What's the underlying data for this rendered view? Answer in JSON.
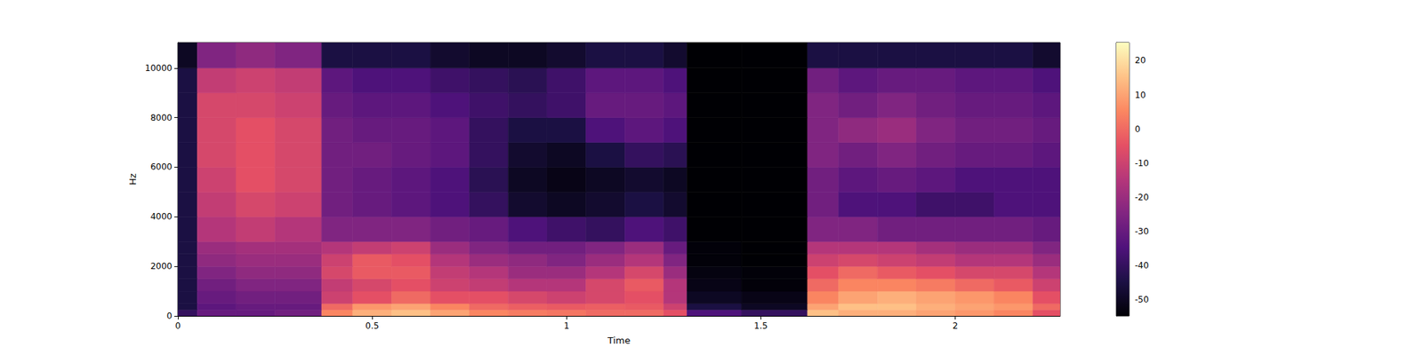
{
  "chart_data": {
    "type": "heatmap",
    "x_label": "Time",
    "y_label": "Hz",
    "xlim": [
      0,
      2.27
    ],
    "xticks": [
      0,
      0.5,
      1,
      1.5,
      2
    ],
    "ylim": [
      0,
      11025
    ],
    "yticks": [
      0,
      2000,
      4000,
      6000,
      8000,
      10000
    ],
    "x_edges": [
      0,
      0.05,
      0.15,
      0.25,
      0.37,
      0.45,
      0.55,
      0.65,
      0.75,
      0.85,
      0.95,
      1.05,
      1.15,
      1.25,
      1.31,
      1.45,
      1.62,
      1.7,
      1.8,
      1.9,
      2.0,
      2.1,
      2.2,
      2.27
    ],
    "y_edges": [
      0,
      250,
      500,
      1000,
      1500,
      2000,
      2500,
      3000,
      4000,
      5000,
      6000,
      7000,
      8000,
      9000,
      10000,
      11025
    ],
    "cells": [
      [
        -40,
        -30,
        -30,
        -28,
        5,
        12,
        15,
        10,
        5,
        3,
        2,
        0,
        0,
        -5,
        -35,
        -40,
        15,
        12,
        12,
        10,
        8,
        5,
        -5
      ],
      [
        -45,
        -32,
        -30,
        -30,
        0,
        8,
        10,
        5,
        0,
        -2,
        -3,
        -2,
        -3,
        -10,
        -45,
        -50,
        10,
        15,
        15,
        12,
        10,
        8,
        0
      ],
      [
        -45,
        -30,
        -28,
        -28,
        -10,
        -5,
        0,
        -5,
        -5,
        -8,
        -10,
        -8,
        -5,
        -15,
        -50,
        -52,
        5,
        10,
        12,
        10,
        8,
        5,
        -5
      ],
      [
        -45,
        -28,
        -25,
        -25,
        -12,
        -8,
        -5,
        -10,
        -12,
        -15,
        -15,
        -8,
        -3,
        -15,
        -52,
        -54,
        0,
        5,
        5,
        3,
        0,
        -3,
        -10
      ],
      [
        -45,
        -25,
        -22,
        -22,
        -8,
        -3,
        -3,
        -12,
        -15,
        -20,
        -20,
        -15,
        -8,
        -20,
        -53,
        -54,
        -5,
        0,
        -3,
        -5,
        -8,
        -8,
        -15
      ],
      [
        -45,
        -22,
        -20,
        -20,
        -10,
        -3,
        -5,
        -15,
        -20,
        -22,
        -25,
        -20,
        -15,
        -25,
        -54,
        -55,
        -10,
        -8,
        -10,
        -12,
        -15,
        -15,
        -20
      ],
      [
        -45,
        -20,
        -18,
        -18,
        -15,
        -12,
        -10,
        -20,
        -25,
        -28,
        -28,
        -25,
        -20,
        -30,
        -54,
        -55,
        -15,
        -15,
        -15,
        -18,
        -20,
        -20,
        -25
      ],
      [
        -45,
        -15,
        -12,
        -15,
        -25,
        -25,
        -25,
        -28,
        -30,
        -35,
        -38,
        -40,
        -35,
        -38,
        -55,
        -55,
        -25,
        -25,
        -28,
        -28,
        -28,
        -28,
        -30
      ],
      [
        -45,
        -12,
        -8,
        -10,
        -28,
        -30,
        -32,
        -35,
        -40,
        -48,
        -50,
        -48,
        -45,
        -48,
        -55,
        -55,
        -28,
        -35,
        -35,
        -38,
        -38,
        -35,
        -35
      ],
      [
        -45,
        -10,
        -5,
        -8,
        -28,
        -30,
        -32,
        -35,
        -42,
        -50,
        -52,
        -50,
        -48,
        -50,
        -55,
        -55,
        -28,
        -32,
        -30,
        -32,
        -35,
        -35,
        -35
      ],
      [
        -45,
        -8,
        -5,
        -8,
        -28,
        -28,
        -30,
        -32,
        -40,
        -48,
        -50,
        -45,
        -40,
        -42,
        -55,
        -55,
        -25,
        -28,
        -25,
        -28,
        -30,
        -30,
        -32
      ],
      [
        -45,
        -8,
        -5,
        -8,
        -28,
        -30,
        -30,
        -32,
        -40,
        -45,
        -45,
        -35,
        -32,
        -35,
        -55,
        -55,
        -25,
        -22,
        -20,
        -25,
        -28,
        -28,
        -30
      ],
      [
        -45,
        -8,
        -8,
        -10,
        -30,
        -32,
        -32,
        -35,
        -38,
        -40,
        -38,
        -30,
        -30,
        -32,
        -55,
        -55,
        -25,
        -28,
        -25,
        -28,
        -30,
        -30,
        -32
      ],
      [
        -45,
        -12,
        -10,
        -12,
        -32,
        -35,
        -35,
        -38,
        -40,
        -42,
        -38,
        -32,
        -32,
        -35,
        -55,
        -55,
        -28,
        -32,
        -30,
        -30,
        -32,
        -32,
        -35
      ],
      [
        -50,
        -25,
        -22,
        -25,
        -45,
        -45,
        -45,
        -48,
        -50,
        -50,
        -48,
        -45,
        -45,
        -48,
        -55,
        -55,
        -45,
        -45,
        -45,
        -45,
        -45,
        -45,
        -48
      ]
    ],
    "colorbar": {
      "range": [
        -54.8,
        25.3
      ],
      "ticks": [
        -50,
        -40,
        -30,
        -20,
        -10,
        0,
        10,
        20
      ]
    }
  }
}
